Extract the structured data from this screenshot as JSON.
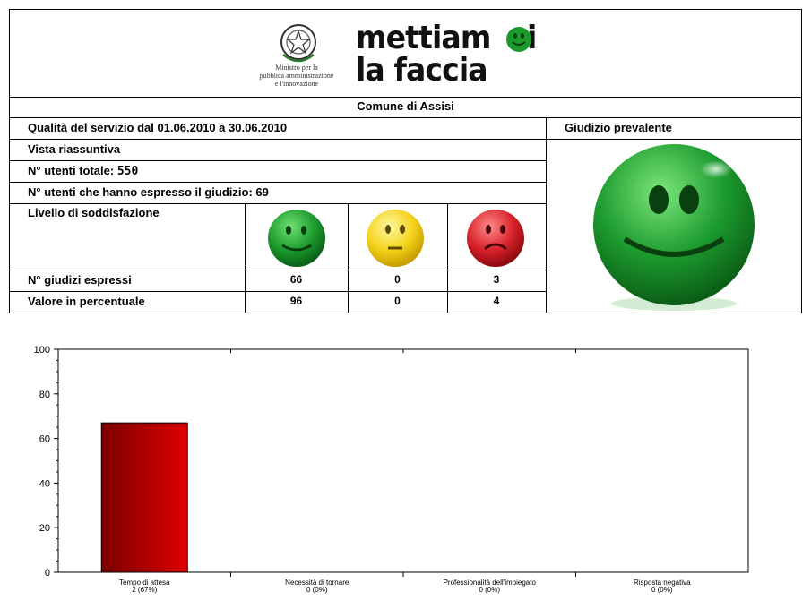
{
  "header": {
    "ministry_lines": [
      "Ministro per la",
      "pubblica amministrazione",
      "e l'innovazione"
    ],
    "brand_line1": "mettiamoci",
    "brand_line2": "la faccia"
  },
  "municipality": "Comune di Assisi",
  "period_label": "Qualità del servizio dal 01.06.2010 a 30.06.2010",
  "verdict_label": "Giudizio prevalente",
  "summary_label": "Vista riassuntiva",
  "total_users_label": "N° utenti totale:",
  "total_users": "550",
  "voters_label": "N° utenti che hanno espresso il giudizio: 69",
  "satisfaction_label": "Livello di soddisfazione",
  "judgements_label": "N° giudizi espressi",
  "percent_label": "Valore in percentuale",
  "judgements": [
    "66",
    "0",
    "3"
  ],
  "percentages": [
    "96",
    "0",
    "4"
  ],
  "colors": {
    "positive": "#1c9b2e",
    "neutral": "#f4d21a",
    "negative": "#d8212a"
  },
  "chart_data": {
    "type": "bar",
    "categories": [
      "Tempo di attesa",
      "Necessità di tornare",
      "Professionalità dell'impiegato",
      "Risposta negativa"
    ],
    "category_counts": [
      "2 (67%)",
      "0 (0%)",
      "0 (0%)",
      "0 (0%)"
    ],
    "values": [
      67,
      0,
      0,
      0
    ],
    "ylim": [
      0,
      100
    ],
    "yticks": [
      "0",
      "20",
      "40",
      "60",
      "80",
      "100"
    ],
    "bar_color": "#e00000"
  }
}
